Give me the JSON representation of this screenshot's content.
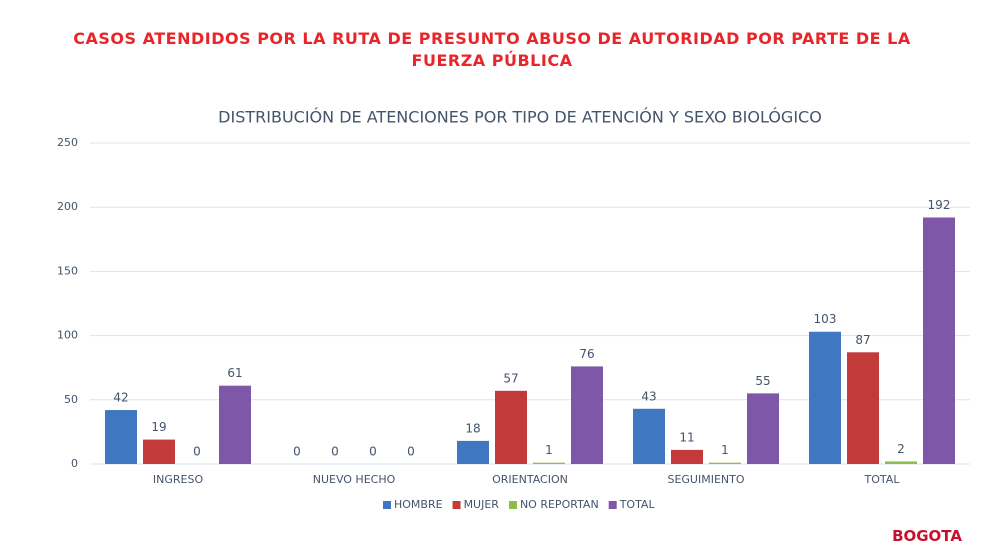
{
  "header": {
    "title": "CASOS ATENDIDOS POR LA RUTA DE PRESUNTO ABUSO DE AUTORIDAD POR PARTE DE LA FUERZA PÚBLICA"
  },
  "logo": "BOGOTA",
  "chart_data": {
    "type": "bar",
    "title": "DISTRIBUCIÓN DE ATENCIONES POR TIPO DE ATENCIÓN Y SEXO BIOLÓGICO",
    "categories": [
      "INGRESO",
      "NUEVO HECHO",
      "ORIENTACION",
      "SEGUIMIENTO",
      "TOTAL"
    ],
    "series": [
      {
        "name": "HOMBRE",
        "color": "#3f78c0",
        "values": [
          42,
          0,
          18,
          43,
          103
        ]
      },
      {
        "name": "MUJER",
        "color": "#c23a3a",
        "values": [
          19,
          0,
          57,
          11,
          87
        ]
      },
      {
        "name": "NO REPORTAN",
        "color": "#8cbd4a",
        "values": [
          0,
          0,
          1,
          1,
          2
        ]
      },
      {
        "name": "TOTAL",
        "color": "#7e57a8",
        "values": [
          61,
          0,
          76,
          55,
          192
        ]
      }
    ],
    "ylim": [
      0,
      250
    ],
    "yticks": [
      0,
      50,
      100,
      150,
      200,
      250
    ],
    "grid": true,
    "legend": "bottom"
  }
}
